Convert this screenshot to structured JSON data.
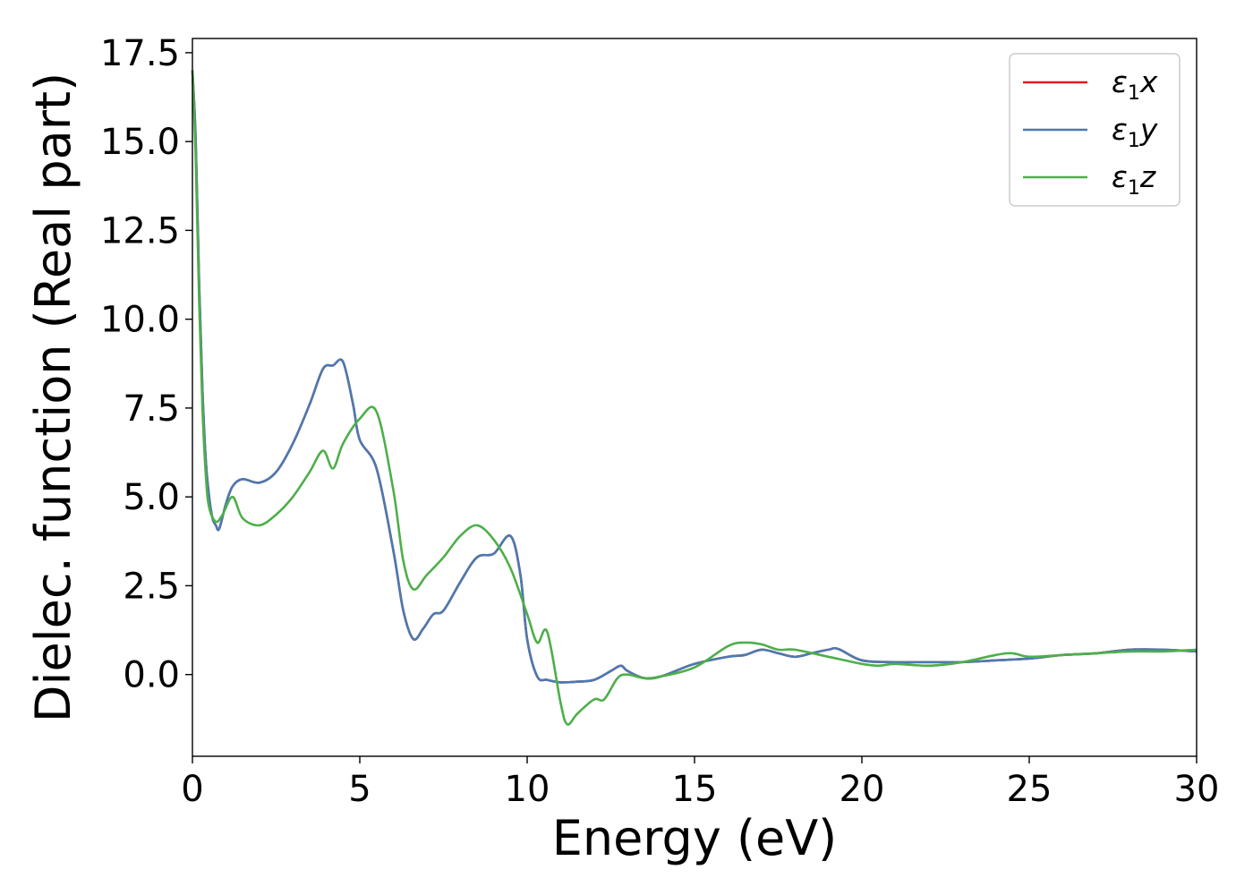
{
  "chart_data": {
    "type": "line",
    "xlabel": "Energy (eV)",
    "ylabel": "Dielec. function (Real part)",
    "xlim": [
      0,
      30
    ],
    "ylim": [
      -2.3,
      17.9
    ],
    "xticks": [
      0,
      5,
      10,
      15,
      20,
      25,
      30
    ],
    "xtick_labels": [
      "0",
      "5",
      "10",
      "15",
      "20",
      "25",
      "30"
    ],
    "yticks": [
      0.0,
      2.5,
      5.0,
      7.5,
      10.0,
      12.5,
      15.0,
      17.5
    ],
    "ytick_labels": [
      "0.0",
      "2.5",
      "5.0",
      "7.5",
      "10.0",
      "12.5",
      "15.0",
      "17.5"
    ],
    "grid": false,
    "legend_position": "top-right",
    "series": [
      {
        "name": "ε1x",
        "legend_symbol": "ε",
        "legend_sub": "1",
        "legend_var": "x",
        "color": "#e41a1c",
        "x": [
          0,
          0.1,
          0.2,
          0.3,
          0.4,
          0.5,
          0.6,
          0.7,
          0.8,
          1.0,
          1.2,
          1.5,
          2.0,
          2.5,
          3.0,
          3.5,
          3.9,
          4.2,
          4.5,
          4.8,
          5.0,
          5.5,
          6.0,
          6.3,
          6.6,
          6.9,
          7.2,
          7.5,
          8.0,
          8.5,
          9.0,
          9.5,
          9.8,
          10.0,
          10.3,
          10.6,
          11.0,
          11.5,
          12.0,
          12.5,
          12.8,
          13.0,
          13.5,
          14.0,
          15.0,
          16.0,
          16.5,
          17.0,
          17.5,
          18.0,
          18.5,
          19.0,
          19.3,
          20.0,
          21.0,
          22.0,
          23.0,
          24.0,
          25.0,
          26.0,
          27.0,
          28.0,
          29.0,
          30.0
        ],
        "y": [
          17.0,
          15.0,
          11.0,
          8.0,
          6.0,
          5.0,
          4.4,
          4.2,
          4.1,
          4.8,
          5.3,
          5.5,
          5.4,
          5.7,
          6.5,
          7.6,
          8.6,
          8.7,
          8.8,
          7.6,
          6.6,
          5.8,
          3.5,
          1.8,
          1.0,
          1.3,
          1.7,
          1.8,
          2.6,
          3.3,
          3.4,
          3.9,
          2.8,
          1.0,
          -0.05,
          -0.15,
          -0.22,
          -0.2,
          -0.15,
          0.1,
          0.25,
          0.1,
          -0.1,
          -0.05,
          0.3,
          0.5,
          0.55,
          0.7,
          0.6,
          0.5,
          0.6,
          0.7,
          0.72,
          0.4,
          0.35,
          0.35,
          0.35,
          0.4,
          0.45,
          0.55,
          0.6,
          0.7,
          0.7,
          0.65
        ]
      },
      {
        "name": "ε1y",
        "legend_symbol": "ε",
        "legend_sub": "1",
        "legend_var": "y",
        "color": "#4a7ab0",
        "x": [
          0,
          0.1,
          0.2,
          0.3,
          0.4,
          0.5,
          0.6,
          0.7,
          0.8,
          1.0,
          1.2,
          1.5,
          2.0,
          2.5,
          3.0,
          3.5,
          3.9,
          4.2,
          4.5,
          4.8,
          5.0,
          5.5,
          6.0,
          6.3,
          6.6,
          6.9,
          7.2,
          7.5,
          8.0,
          8.5,
          9.0,
          9.5,
          9.8,
          10.0,
          10.3,
          10.6,
          11.0,
          11.5,
          12.0,
          12.5,
          12.8,
          13.0,
          13.5,
          14.0,
          15.0,
          16.0,
          16.5,
          17.0,
          17.5,
          18.0,
          18.5,
          19.0,
          19.3,
          20.0,
          21.0,
          22.0,
          23.0,
          24.0,
          25.0,
          26.0,
          27.0,
          28.0,
          29.0,
          30.0
        ],
        "y": [
          17.0,
          15.0,
          11.0,
          8.0,
          6.0,
          5.0,
          4.4,
          4.2,
          4.1,
          4.8,
          5.3,
          5.5,
          5.4,
          5.7,
          6.5,
          7.6,
          8.6,
          8.7,
          8.8,
          7.6,
          6.6,
          5.8,
          3.5,
          1.8,
          1.0,
          1.3,
          1.7,
          1.8,
          2.6,
          3.3,
          3.4,
          3.9,
          2.8,
          1.0,
          -0.05,
          -0.15,
          -0.22,
          -0.2,
          -0.15,
          0.1,
          0.25,
          0.1,
          -0.1,
          -0.05,
          0.3,
          0.5,
          0.55,
          0.7,
          0.6,
          0.5,
          0.6,
          0.7,
          0.72,
          0.4,
          0.35,
          0.35,
          0.35,
          0.4,
          0.45,
          0.55,
          0.6,
          0.7,
          0.7,
          0.65
        ]
      },
      {
        "name": "ε1z",
        "legend_symbol": "ε",
        "legend_sub": "1",
        "legend_var": "z",
        "color": "#4daf4a",
        "x": [
          0,
          0.1,
          0.2,
          0.3,
          0.4,
          0.5,
          0.7,
          0.9,
          1.2,
          1.5,
          2.0,
          2.5,
          3.0,
          3.5,
          3.9,
          4.2,
          4.5,
          5.0,
          5.5,
          6.0,
          6.3,
          6.6,
          7.0,
          7.5,
          8.0,
          8.5,
          9.0,
          9.5,
          10.0,
          10.3,
          10.6,
          11.0,
          11.2,
          11.5,
          12.0,
          12.3,
          12.7,
          13.0,
          13.5,
          14.0,
          15.0,
          16.0,
          16.5,
          17.0,
          17.5,
          18.0,
          19.0,
          20.0,
          20.5,
          21.0,
          22.0,
          23.0,
          24.0,
          24.5,
          25.0,
          26.0,
          27.0,
          28.0,
          29.0,
          30.0
        ],
        "y": [
          17.0,
          14.5,
          10.5,
          7.5,
          5.6,
          4.7,
          4.3,
          4.5,
          5.0,
          4.4,
          4.2,
          4.5,
          5.0,
          5.7,
          6.3,
          5.8,
          6.5,
          7.2,
          7.4,
          5.2,
          3.2,
          2.4,
          2.8,
          3.3,
          3.9,
          4.2,
          3.8,
          3.0,
          1.7,
          0.9,
          1.2,
          -0.8,
          -1.4,
          -1.1,
          -0.7,
          -0.7,
          -0.1,
          0.0,
          -0.1,
          -0.05,
          0.2,
          0.8,
          0.9,
          0.85,
          0.7,
          0.7,
          0.5,
          0.3,
          0.25,
          0.3,
          0.25,
          0.35,
          0.55,
          0.6,
          0.5,
          0.55,
          0.6,
          0.65,
          0.65,
          0.7
        ]
      }
    ]
  }
}
